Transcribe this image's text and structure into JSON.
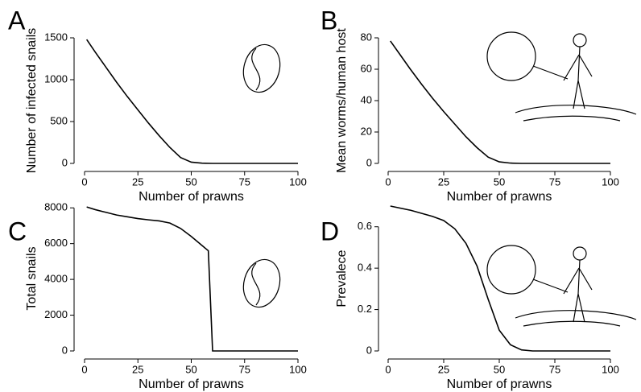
{
  "chart_data": [
    {
      "type": "line",
      "panel": "A",
      "xlabel": "Number of prawns",
      "ylabel": "Number of infected snails",
      "x": [
        1,
        5,
        10,
        15,
        20,
        25,
        30,
        35,
        40,
        45,
        50,
        55,
        60,
        70,
        80,
        90,
        100
      ],
      "values": [
        1480,
        1330,
        1150,
        970,
        800,
        640,
        480,
        330,
        190,
        70,
        15,
        3,
        0,
        0,
        0,
        0,
        0
      ],
      "color": "#000000",
      "xlim": [
        0,
        100
      ],
      "ylim": [
        0,
        1500
      ],
      "xticks": [
        0,
        25,
        50,
        75,
        100
      ],
      "yticks": [
        0,
        500,
        1000,
        1500
      ]
    },
    {
      "type": "line",
      "panel": "B",
      "xlabel": "Number of prawns",
      "ylabel": "Mean worms/human host",
      "x": [
        1,
        5,
        10,
        15,
        20,
        25,
        30,
        35,
        40,
        45,
        50,
        55,
        60,
        70,
        80,
        90,
        100
      ],
      "values": [
        78,
        70,
        60,
        50.5,
        41.5,
        33,
        25,
        17,
        10,
        4,
        1,
        0.2,
        0,
        0,
        0,
        0,
        0
      ],
      "color": "#000000",
      "xlim": [
        0,
        100
      ],
      "ylim": [
        0,
        80
      ],
      "xticks": [
        0,
        25,
        50,
        75,
        100
      ],
      "yticks": [
        0,
        20,
        40,
        60,
        80
      ]
    },
    {
      "type": "line",
      "panel": "C",
      "xlabel": "Number of prawns",
      "ylabel": "Total snails",
      "x": [
        1,
        5,
        10,
        15,
        20,
        25,
        30,
        35,
        40,
        45,
        50,
        55,
        58,
        60,
        70,
        80,
        90,
        100
      ],
      "values": [
        8050,
        7900,
        7750,
        7600,
        7500,
        7400,
        7330,
        7270,
        7150,
        6850,
        6400,
        5900,
        5600,
        0,
        0,
        0,
        0,
        0
      ],
      "color": "#000000",
      "xlim": [
        0,
        100
      ],
      "ylim": [
        0,
        8100
      ],
      "xticks": [
        0,
        25,
        50,
        75,
        100
      ],
      "yticks": [
        0,
        2000,
        4000,
        6000,
        8000
      ]
    },
    {
      "type": "line",
      "panel": "D",
      "xlabel": "Number of prawns",
      "ylabel": "Prevalece",
      "x": [
        1,
        10,
        20,
        25,
        30,
        35,
        40,
        45,
        50,
        55,
        60,
        65,
        70,
        80,
        90,
        100
      ],
      "values": [
        0.7,
        0.68,
        0.65,
        0.63,
        0.59,
        0.52,
        0.41,
        0.25,
        0.1,
        0.03,
        0.005,
        0,
        0,
        0,
        0,
        0
      ],
      "color": "#000000",
      "xlim": [
        0,
        100
      ],
      "ylim": [
        0,
        0.7
      ],
      "xticks": [
        0,
        25,
        50,
        75,
        100
      ],
      "yticks": [
        0,
        0.2,
        0.4,
        0.6
      ]
    }
  ]
}
